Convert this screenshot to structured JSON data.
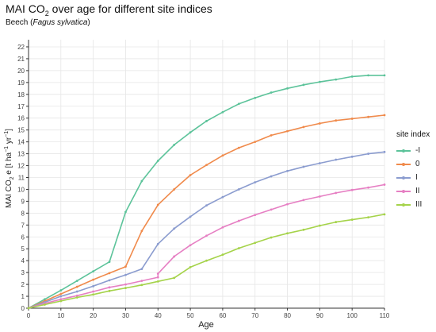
{
  "chart_data": {
    "type": "line",
    "title": {
      "pre": "MAI CO",
      "sub": "2",
      "post": " over age for different site indices"
    },
    "subtitle": {
      "pre": "Beech (",
      "italic": "Fagus sylvatica",
      "post": ")"
    },
    "xlabel": "Age",
    "ylabel": {
      "pre": "MAI CO",
      "sub": "2",
      "mid": " e [t ha",
      "sup1": "−1",
      "mid2": " yr",
      "sup2": "−1",
      "post": "]"
    },
    "xlim": [
      0,
      110
    ],
    "ylim": [
      0,
      22.6
    ],
    "x_ticks": [
      0,
      10,
      20,
      30,
      40,
      50,
      60,
      70,
      80,
      90,
      100,
      110
    ],
    "y_ticks": [
      0,
      1,
      2,
      3,
      4,
      5,
      6,
      7,
      8,
      9,
      10,
      11,
      12,
      13,
      14,
      15,
      16,
      17,
      18,
      19,
      20,
      21,
      22
    ],
    "grid": true,
    "legend": {
      "title": "site index",
      "position": "right"
    },
    "series": [
      {
        "name": "-I",
        "color": "#5cc39a",
        "points": [
          [
            0,
            0
          ],
          [
            5,
            0.75
          ],
          [
            10,
            1.5
          ],
          [
            15,
            2.3
          ],
          [
            20,
            3.1
          ],
          [
            25,
            3.9
          ],
          [
            30,
            8.1
          ],
          [
            35,
            10.7
          ],
          [
            40,
            12.4
          ],
          [
            45,
            13.75
          ],
          [
            50,
            14.8
          ],
          [
            55,
            15.75
          ],
          [
            60,
            16.5
          ],
          [
            65,
            17.2
          ],
          [
            70,
            17.7
          ],
          [
            75,
            18.15
          ],
          [
            80,
            18.5
          ],
          [
            85,
            18.8
          ],
          [
            90,
            19.05
          ],
          [
            95,
            19.25
          ],
          [
            100,
            19.5
          ],
          [
            105,
            19.6
          ],
          [
            110,
            19.6
          ]
        ]
      },
      {
        "name": "0",
        "color": "#f08a4b",
        "points": [
          [
            0,
            0
          ],
          [
            5,
            0.6
          ],
          [
            10,
            1.2
          ],
          [
            15,
            1.8
          ],
          [
            20,
            2.4
          ],
          [
            25,
            2.95
          ],
          [
            30,
            3.5
          ],
          [
            35,
            6.5
          ],
          [
            40,
            8.7
          ],
          [
            45,
            10.0
          ],
          [
            50,
            11.2
          ],
          [
            55,
            12.05
          ],
          [
            60,
            12.85
          ],
          [
            65,
            13.5
          ],
          [
            70,
            14.0
          ],
          [
            75,
            14.55
          ],
          [
            80,
            14.9
          ],
          [
            85,
            15.25
          ],
          [
            90,
            15.55
          ],
          [
            95,
            15.8
          ],
          [
            100,
            15.95
          ],
          [
            105,
            16.1
          ],
          [
            110,
            16.25
          ]
        ]
      },
      {
        "name": "I",
        "color": "#8b9ccf",
        "points": [
          [
            0,
            0
          ],
          [
            5,
            0.5
          ],
          [
            10,
            1.0
          ],
          [
            15,
            1.4
          ],
          [
            20,
            1.85
          ],
          [
            25,
            2.35
          ],
          [
            30,
            2.8
          ],
          [
            35,
            3.3
          ],
          [
            40,
            5.4
          ],
          [
            45,
            6.7
          ],
          [
            50,
            7.7
          ],
          [
            55,
            8.65
          ],
          [
            60,
            9.35
          ],
          [
            65,
            10.0
          ],
          [
            70,
            10.6
          ],
          [
            75,
            11.1
          ],
          [
            80,
            11.55
          ],
          [
            85,
            11.9
          ],
          [
            90,
            12.2
          ],
          [
            95,
            12.5
          ],
          [
            100,
            12.75
          ],
          [
            105,
            13.0
          ],
          [
            110,
            13.15
          ]
        ]
      },
      {
        "name": "II",
        "color": "#e67fc3",
        "points": [
          [
            0,
            0
          ],
          [
            5,
            0.4
          ],
          [
            10,
            0.75
          ],
          [
            15,
            1.05
          ],
          [
            20,
            1.4
          ],
          [
            25,
            1.75
          ],
          [
            30,
            2.0
          ],
          [
            35,
            2.3
          ],
          [
            40,
            2.6
          ],
          [
            40,
            2.9
          ],
          [
            45,
            4.35
          ],
          [
            50,
            5.3
          ],
          [
            55,
            6.1
          ],
          [
            60,
            6.8
          ],
          [
            65,
            7.35
          ],
          [
            70,
            7.85
          ],
          [
            75,
            8.3
          ],
          [
            80,
            8.75
          ],
          [
            85,
            9.1
          ],
          [
            90,
            9.4
          ],
          [
            95,
            9.7
          ],
          [
            100,
            9.95
          ],
          [
            105,
            10.15
          ],
          [
            110,
            10.4
          ]
        ]
      },
      {
        "name": "III",
        "color": "#a5d34a",
        "points": [
          [
            0,
            0
          ],
          [
            5,
            0.3
          ],
          [
            10,
            0.6
          ],
          [
            15,
            0.9
          ],
          [
            20,
            1.15
          ],
          [
            25,
            1.45
          ],
          [
            30,
            1.7
          ],
          [
            35,
            1.95
          ],
          [
            40,
            2.25
          ],
          [
            45,
            2.55
          ],
          [
            50,
            3.45
          ],
          [
            55,
            4.0
          ],
          [
            60,
            4.5
          ],
          [
            65,
            5.05
          ],
          [
            70,
            5.5
          ],
          [
            75,
            5.95
          ],
          [
            80,
            6.3
          ],
          [
            85,
            6.6
          ],
          [
            90,
            6.95
          ],
          [
            95,
            7.25
          ],
          [
            100,
            7.45
          ],
          [
            105,
            7.65
          ],
          [
            110,
            7.9
          ]
        ]
      }
    ]
  }
}
